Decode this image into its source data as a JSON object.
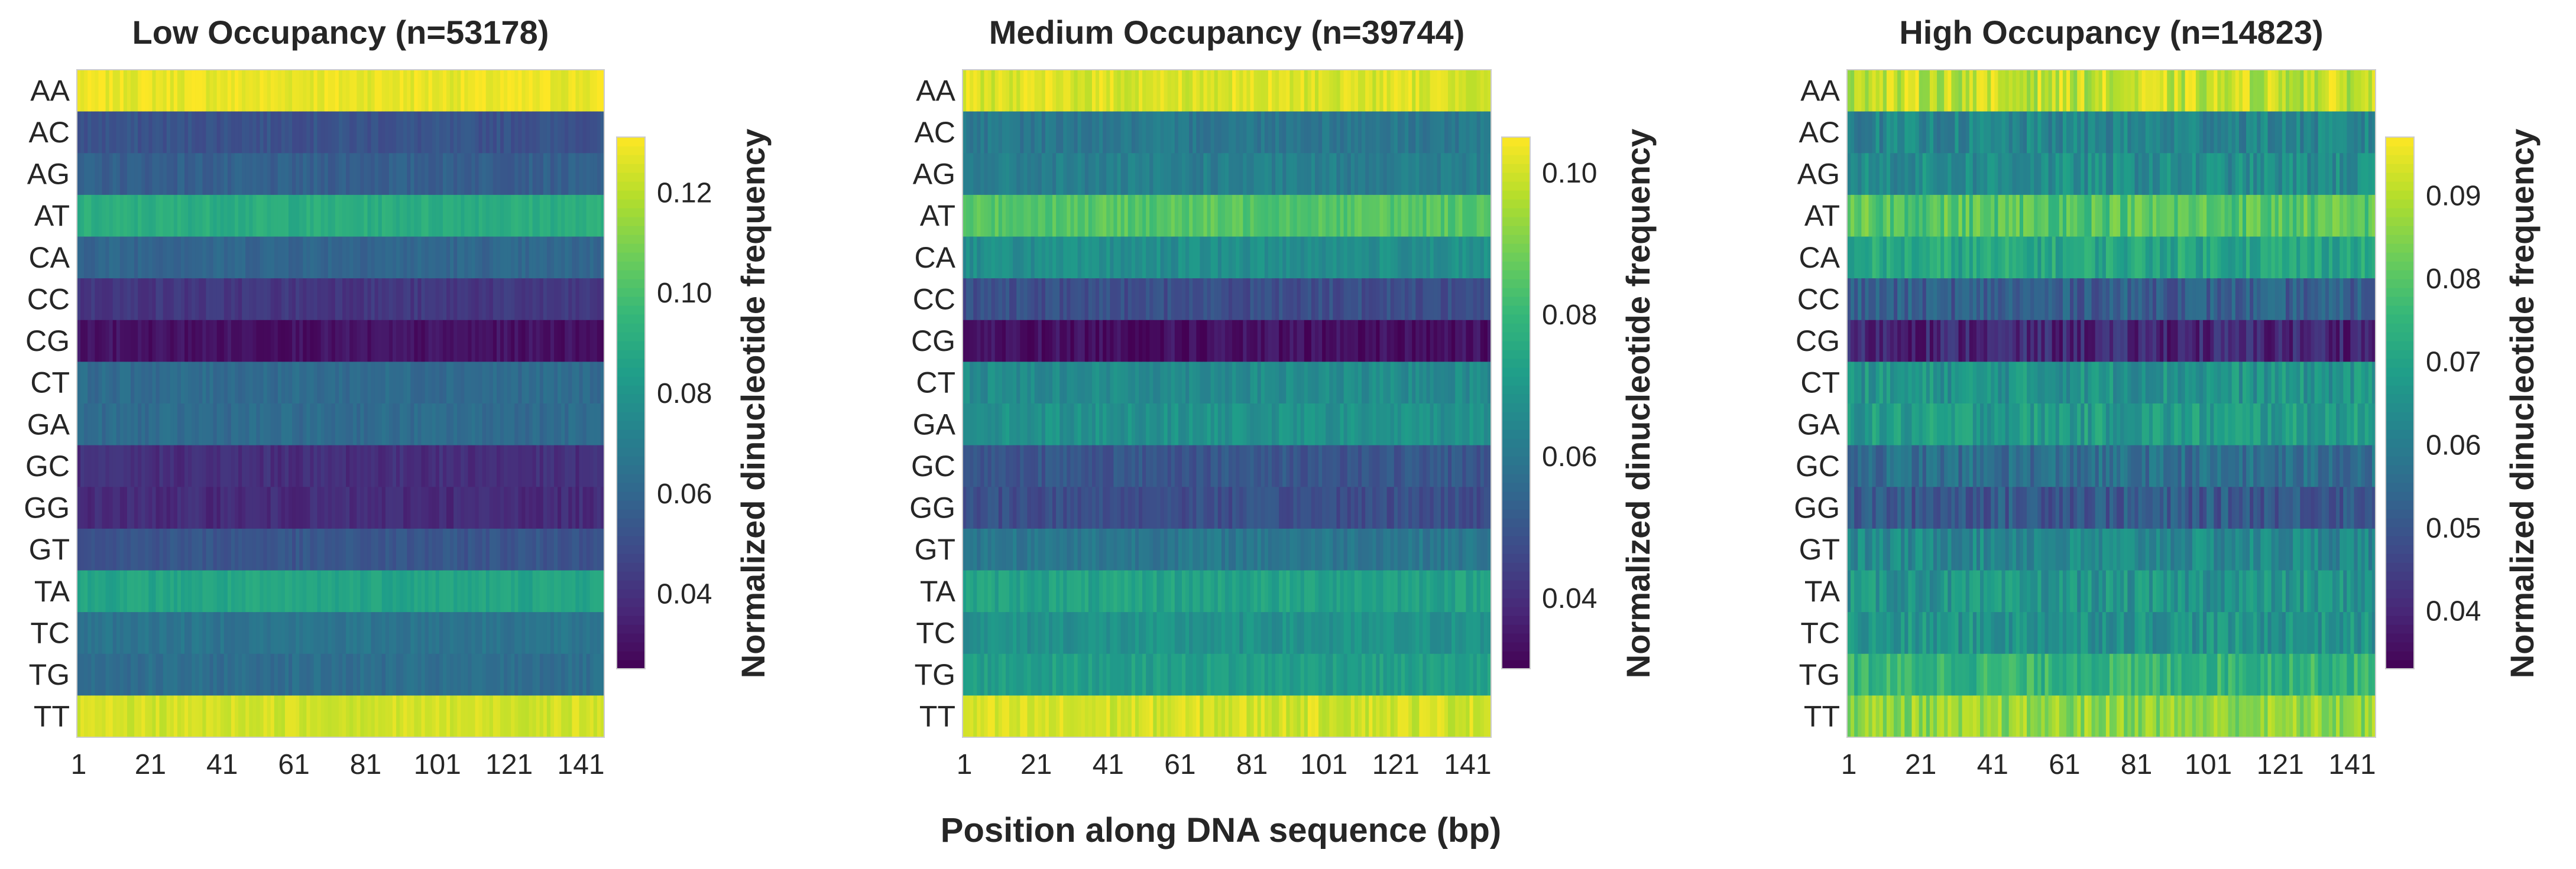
{
  "figure": {
    "xlabel": "Position along DNA sequence (bp)"
  },
  "colormap": {
    "name": "viridis",
    "stops": [
      "#440154",
      "#482878",
      "#3e4a89",
      "#31688e",
      "#26828e",
      "#1f9e89",
      "#35b779",
      "#6ece58",
      "#b5de2b",
      "#fde725"
    ]
  },
  "chart_data": [
    {
      "type": "heatmap",
      "title": "Low Occupancy (n=53178)",
      "rows": [
        "AA",
        "AC",
        "AG",
        "AT",
        "CA",
        "CC",
        "CG",
        "CT",
        "GA",
        "GC",
        "GG",
        "GT",
        "TA",
        "TC",
        "TG",
        "TT"
      ],
      "x_ticks": [
        "1",
        "21",
        "41",
        "61",
        "81",
        "101",
        "121",
        "141"
      ],
      "x_range": [
        1,
        147
      ],
      "row_mean_values": [
        0.128,
        0.052,
        0.057,
        0.091,
        0.06,
        0.042,
        0.03,
        0.062,
        0.062,
        0.039,
        0.038,
        0.053,
        0.087,
        0.066,
        0.063,
        0.124
      ],
      "row_noise": 0.004,
      "colorbar": {
        "label": "Normalized dinucleotide frequency",
        "range": [
          0.025,
          0.131
        ],
        "ticks": [
          "0.04",
          "0.06",
          "0.08",
          "0.10",
          "0.12"
        ]
      }
    },
    {
      "type": "heatmap",
      "title": "Medium Occupancy (n=39744)",
      "rows": [
        "AA",
        "AC",
        "AG",
        "AT",
        "CA",
        "CC",
        "CG",
        "CT",
        "GA",
        "GC",
        "GG",
        "GT",
        "TA",
        "TC",
        "TG",
        "TT"
      ],
      "x_ticks": [
        "1",
        "21",
        "41",
        "61",
        "81",
        "101",
        "121",
        "141"
      ],
      "x_range": [
        1,
        147
      ],
      "row_mean_values": [
        0.101,
        0.06,
        0.062,
        0.085,
        0.067,
        0.048,
        0.033,
        0.066,
        0.068,
        0.05,
        0.048,
        0.06,
        0.073,
        0.068,
        0.072,
        0.1
      ],
      "row_noise": 0.004,
      "colorbar": {
        "label": "Normalized dinucleotide frequency",
        "range": [
          0.03,
          0.105
        ],
        "ticks": [
          "0.04",
          "0.06",
          "0.08",
          "0.10"
        ]
      }
    },
    {
      "type": "heatmap",
      "title": "High Occupancy (n=14823)",
      "rows": [
        "AA",
        "AC",
        "AG",
        "AT",
        "CA",
        "CC",
        "CG",
        "CT",
        "GA",
        "GC",
        "GG",
        "GT",
        "TA",
        "TC",
        "TG",
        "TT"
      ],
      "x_ticks": [
        "1",
        "21",
        "41",
        "61",
        "81",
        "101",
        "121",
        "141"
      ],
      "x_range": [
        1,
        147
      ],
      "row_mean_values": [
        0.091,
        0.062,
        0.064,
        0.08,
        0.071,
        0.052,
        0.04,
        0.066,
        0.068,
        0.056,
        0.051,
        0.063,
        0.066,
        0.066,
        0.075,
        0.086
      ],
      "row_noise": 0.006,
      "colorbar": {
        "label": "Normalized dinucleotide frequency",
        "range": [
          0.033,
          0.097
        ],
        "ticks": [
          "0.04",
          "0.05",
          "0.06",
          "0.07",
          "0.08",
          "0.09"
        ]
      }
    }
  ]
}
